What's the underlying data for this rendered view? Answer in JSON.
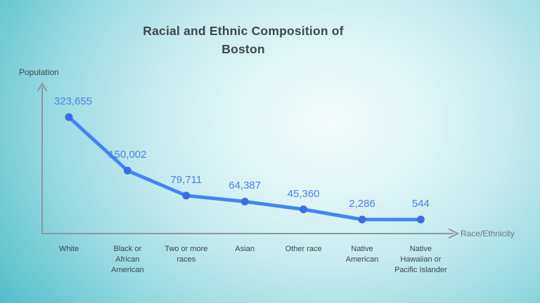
{
  "slide": {
    "title": "Racial and Ethnic Composition of Boston"
  },
  "colors": {
    "line": "#4285f4",
    "point": "#3b6ee3",
    "value_label": "#4a80e8",
    "axis": "#8f999c",
    "title_text": "#3e484a",
    "tick_text": "#37474b",
    "y_axis_label_text": "#3e484a",
    "x_axis_label_text": "#6b787c"
  },
  "chart_data": {
    "type": "line",
    "title": "Racial and Ethnic Composition of Boston",
    "xlabel": "Race/Ethnicity",
    "ylabel": "Population",
    "categories": [
      "White",
      "Black or African American",
      "Two or more races",
      "Asian",
      "Other race",
      "Native American",
      "Native Hawaiian or Pacific Islander"
    ],
    "tick_display_lines": [
      "White",
      "Black or\nAfrican\nAmerican",
      "Two or more\nraces",
      "Asian",
      "Other race",
      "Native\nAmerican",
      "Native\nHawaiian or\nPacific Islander"
    ],
    "values": [
      323655,
      150002,
      79711,
      64387,
      45360,
      2286,
      544
    ],
    "value_labels": [
      "323,655",
      "150,002",
      "79,711",
      "64,387",
      "45,360",
      "2,286",
      "544"
    ],
    "ylim": [
      0,
      323655
    ],
    "grid": false,
    "legend": false,
    "marker": "circle",
    "annotations": "value above each point"
  }
}
